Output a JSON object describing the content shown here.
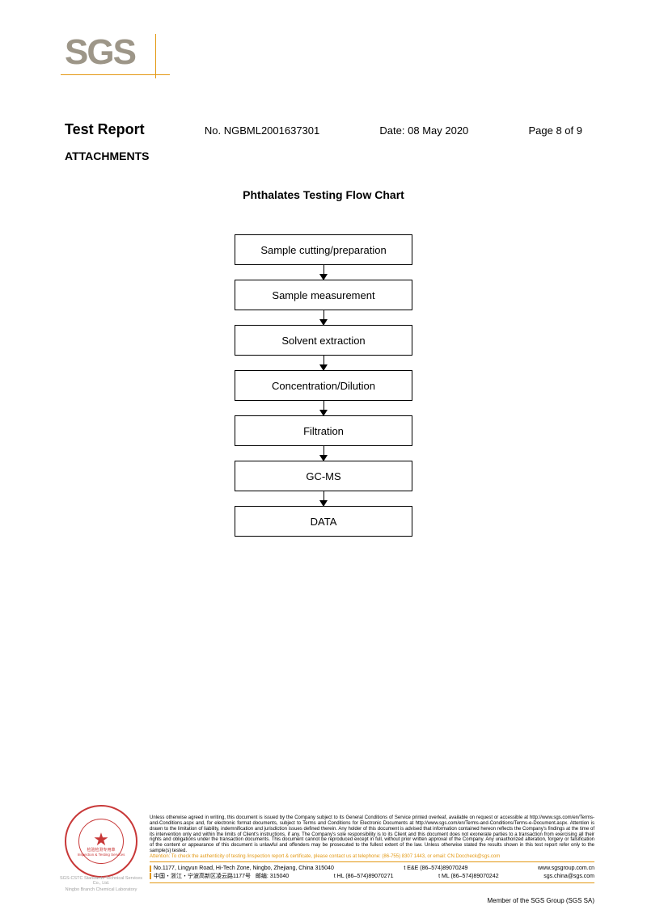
{
  "logo": "SGS",
  "header": {
    "title": "Test Report",
    "report_no_label": "No.",
    "report_no": "NGBML2001637301",
    "date_label": "Date:",
    "date": "08 May 2020",
    "page": "Page 8 of 9"
  },
  "attachments_label": "ATTACHMENTS",
  "chart_title": "Phthalates Testing Flow Chart",
  "flowchart": {
    "steps": [
      "Sample cutting/preparation",
      "Sample measurement",
      "Solvent extraction",
      "Concentration/Dilution",
      "Filtration",
      "GC-MS",
      "DATA"
    ]
  },
  "seal": {
    "text_mid1": "检验检测专用章",
    "text_mid2": "Inspection & Testing Services",
    "text_bot1": "SGS-CSTC Standards Technical Services Co., Ltd.",
    "text_bot2": "Ningbo Branch Chemical Laboratory"
  },
  "disclaimer": {
    "main": "Unless otherwise agreed in writing, this document is issued by the Company subject to its General Conditions of Service printed overleaf, available on request or accessible at http://www.sgs.com/en/Terms-and-Conditions.aspx and, for electronic format documents, subject to Terms and Conditions for Electronic Documents at http://www.sgs.com/en/Terms-and-Conditions/Terms-e-Document.aspx. Attention is drawn to the limitation of liability, indemnification and jurisdiction issues defined therein. Any holder of this document is advised that information contained hereon reflects the Company's findings at the time of its intervention only and within the limits of Client's instructions, if any. The Company's sole responsibility is to its Client and this document does not exonerate parties to a transaction from exercising all their rights and obligations under the transaction documents. This document cannot be reproduced except in full, without prior written approval of the Company. Any unauthorized alteration, forgery or falsification of the content or appearance of this document is unlawful and offenders may be prosecuted to the fullest extent of the law. Unless otherwise stated the results shown in this test report refer only to the sample(s) tested.",
    "attention": "Attention: To check the authenticity of testing /inspection report & certificate, please contact us at telephone: (86-755) 8307 1443, or email: CN.Doccheck@sgs.com"
  },
  "address": {
    "line1_left": "No.1177, Lingyun Road, Hi-Tech Zone, Ningbo, Zhejiang, China 315040",
    "line1_mid": "t E&E (86–574)89070249",
    "line1_right": "www.sgsgroup.com.cn",
    "line2_left": "中国・浙江・宁波高新区凌云路1177号",
    "line2_mid1": "邮编: 315040",
    "line2_mid2": "t HL  (86–574)89070271",
    "line2_mid3": "t ML (86–574)89070242",
    "line2_right": "sgs.china@sgs.com"
  },
  "member_text": "Member of the SGS Group (SGS SA)"
}
